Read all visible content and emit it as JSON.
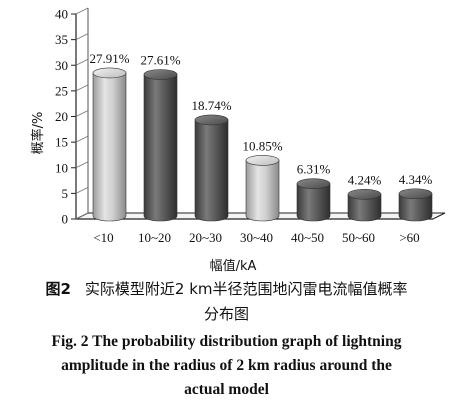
{
  "chart_data": {
    "type": "bar",
    "categories": [
      "<10",
      "10~20",
      "20~30",
      "30~40",
      "40~50",
      "50~60",
      ">60"
    ],
    "values": [
      27.91,
      27.61,
      18.74,
      10.85,
      6.31,
      4.24,
      4.34
    ],
    "value_labels": [
      "27.91%",
      "27.61%",
      "18.74%",
      "10.85%",
      "6.31%",
      "4.24%",
      "4.34%"
    ],
    "bar_shades": [
      "light",
      "dark",
      "dark",
      "light",
      "dark",
      "dark",
      "dark"
    ],
    "ylim": [
      0,
      40
    ],
    "yticks": [
      "0",
      "5",
      "10",
      "15",
      "20",
      "25",
      "30",
      "35",
      "40"
    ],
    "ylabel": "概率/%",
    "xlabel": "幅值/kA",
    "grid": false,
    "style": "3d-cylinder"
  },
  "caption": {
    "zh_label": "图2",
    "zh_line1": "实际模型附近2 km半径范围地闪雷电流幅值概率",
    "zh_line2": "分布图",
    "en_line1": "Fig. 2    The probability distribution graph of lightning",
    "en_line2": "amplitude in the radius of 2 km radius around the",
    "en_line3": "actual model"
  }
}
